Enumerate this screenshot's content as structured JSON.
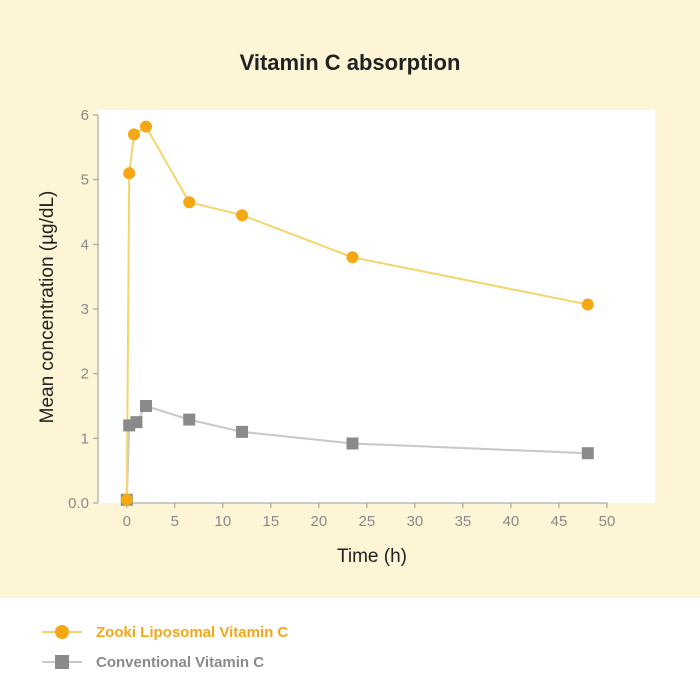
{
  "chart_data": {
    "type": "line",
    "title": "Vitamin C absorption",
    "xlabel": "Time (h)",
    "ylabel": "Mean concentration (µg/dL)",
    "xlim": [
      -3,
      55
    ],
    "ylim": [
      0,
      6
    ],
    "x_ticks": [
      0,
      5,
      10,
      15,
      20,
      25,
      30,
      35,
      40,
      45,
      50
    ],
    "y_ticks": [
      {
        "value": 0,
        "label": "0.0"
      },
      {
        "value": 1,
        "label": "1"
      },
      {
        "value": 2,
        "label": "2"
      },
      {
        "value": 3,
        "label": "3"
      },
      {
        "value": 4,
        "label": "4"
      },
      {
        "value": 5,
        "label": "5"
      },
      {
        "value": 6,
        "label": "6"
      }
    ],
    "series": [
      {
        "name": "Zooki Liposomal Vitamin C",
        "color": "#f5a714",
        "line_color": "#f7d46b",
        "marker": "circle",
        "points": [
          [
            0,
            0.05
          ],
          [
            0.25,
            5.1
          ],
          [
            0.75,
            5.7
          ],
          [
            2,
            5.82
          ],
          [
            6.5,
            4.65
          ],
          [
            12,
            4.45
          ],
          [
            23.5,
            3.8
          ],
          [
            48,
            3.07
          ]
        ]
      },
      {
        "name": "Conventional Vitamin C",
        "color": "#8a8a8a",
        "line_color": "#c8c8c8",
        "marker": "square",
        "points": [
          [
            0,
            0.05
          ],
          [
            0.25,
            1.2
          ],
          [
            1,
            1.25
          ],
          [
            2,
            1.5
          ],
          [
            6.5,
            1.29
          ],
          [
            12,
            1.1
          ],
          [
            23.5,
            0.92
          ],
          [
            48,
            0.77
          ]
        ]
      }
    ]
  }
}
